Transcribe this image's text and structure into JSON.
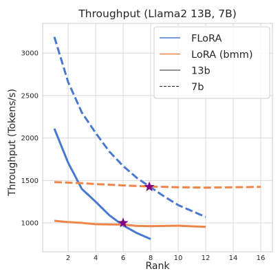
{
  "chart_data": {
    "type": "line",
    "title": "Throughput (Llama2 13B, 7B)",
    "xlabel": "Rank",
    "ylabel": "Throughput (Tokens/s)",
    "xlim": [
      0.15,
      16.85
    ],
    "ylim": [
      660,
      3350
    ],
    "xticks": [
      2,
      4,
      6,
      8,
      10,
      12,
      14,
      16
    ],
    "yticks": [
      1000,
      1500,
      2000,
      2500,
      3000
    ],
    "grid": true,
    "legend_position": "top-right",
    "legend": [
      {
        "label": "FLoRA",
        "kind": "color",
        "color": "#4878cf"
      },
      {
        "label": "LoRA (bmm)",
        "kind": "color",
        "color": "#ee854a"
      },
      {
        "label": "13b",
        "kind": "style",
        "dash": "solid",
        "color": "#262626"
      },
      {
        "label": "7b",
        "kind": "style",
        "dash": "dashed",
        "color": "#262626"
      }
    ],
    "series": [
      {
        "method": "FLoRA",
        "model": "7b",
        "color": "#4878cf",
        "dash": "dashed",
        "x": [
          1,
          2,
          3,
          4,
          5,
          6,
          7,
          8,
          9,
          10,
          11,
          12
        ],
        "y": [
          3190,
          2660,
          2300,
          2060,
          1840,
          1670,
          1530,
          1420,
          1310,
          1210,
          1140,
          1070
        ]
      },
      {
        "method": "FLoRA",
        "model": "13b",
        "color": "#4878cf",
        "dash": "solid",
        "x": [
          1,
          2,
          3,
          4,
          5,
          6,
          7,
          8
        ],
        "y": [
          2110,
          1710,
          1400,
          1250,
          1090,
          970,
          880,
          810
        ]
      },
      {
        "method": "LoRA (bmm)",
        "model": "7b",
        "color": "#ee854a",
        "dash": "dashed",
        "x": [
          1,
          2,
          3,
          4,
          5,
          6,
          7,
          8,
          9,
          10,
          11,
          12,
          13,
          14,
          15,
          16
        ],
        "y": [
          1480,
          1475,
          1468,
          1458,
          1450,
          1442,
          1435,
          1428,
          1425,
          1420,
          1418,
          1415,
          1418,
          1420,
          1422,
          1425
        ]
      },
      {
        "method": "LoRA (bmm)",
        "model": "13b",
        "color": "#ee854a",
        "dash": "solid",
        "x": [
          1,
          2,
          3,
          4,
          5,
          6,
          7,
          8,
          9,
          10,
          11,
          12
        ],
        "y": [
          1025,
          1010,
          1000,
          985,
          982,
          980,
          965,
          962,
          965,
          968,
          960,
          955
        ]
      }
    ],
    "markers": [
      {
        "model": "13b",
        "x": 6,
        "y": 1000,
        "shape": "star",
        "color": "#800080"
      },
      {
        "model": "7b",
        "x": 7.9,
        "y": 1425,
        "shape": "star",
        "color": "#800080"
      }
    ]
  }
}
